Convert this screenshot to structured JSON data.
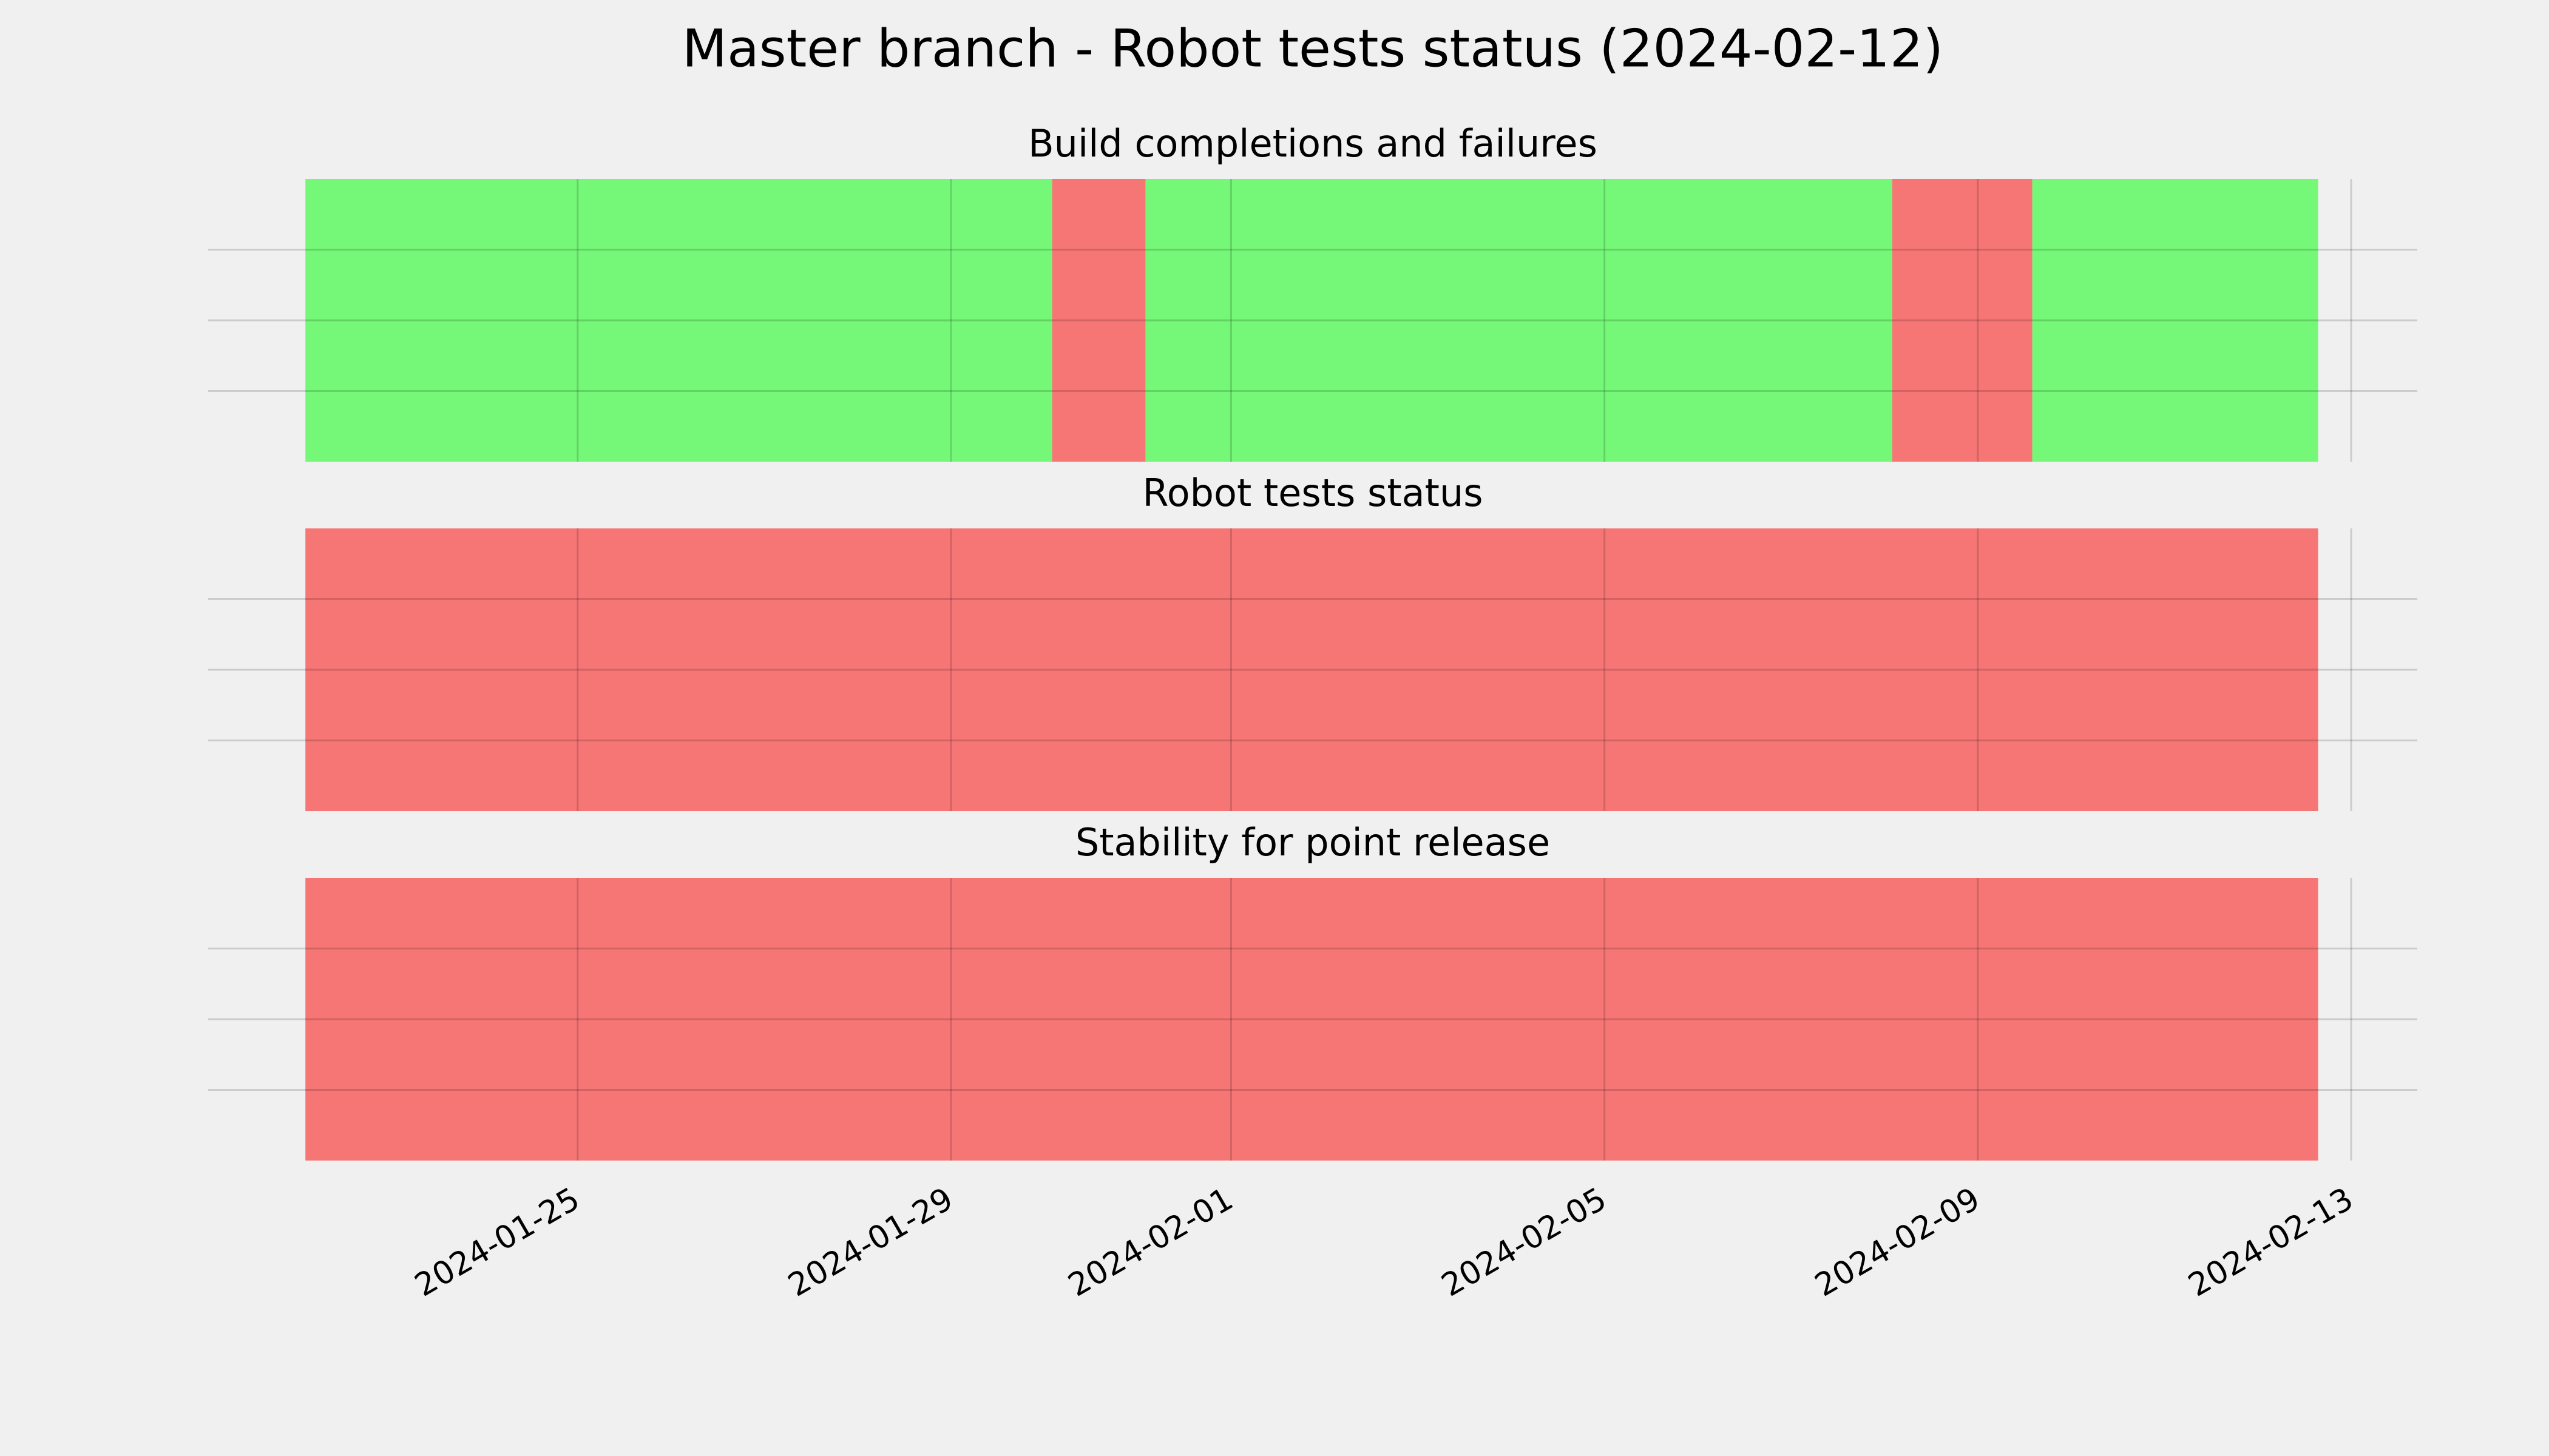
{
  "title": "Master branch - Robot tests status (2024-02-12)",
  "chart_data": [
    {
      "type": "timeline",
      "title": "Build completions and failures",
      "spans": [
        {
          "start": "2024-01-22T02:00",
          "end": "2024-01-30T02:00",
          "color": "#75f777"
        },
        {
          "start": "2024-01-30T02:00",
          "end": "2024-01-31T02:00",
          "color": "#f67575"
        },
        {
          "start": "2024-01-31T02:00",
          "end": "2024-02-08T02:00",
          "color": "#75f777"
        },
        {
          "start": "2024-02-08T02:00",
          "end": "2024-02-09T14:00",
          "color": "#f67575"
        },
        {
          "start": "2024-02-09T14:00",
          "end": "2024-02-12T15:30",
          "color": "#75f777"
        }
      ],
      "xlim": [
        "2024-01-21T01:00",
        "2024-02-13T17:00"
      ],
      "xticks": [
        {
          "value": "2024-01-25T00:00",
          "label": "2024-01-25"
        },
        {
          "value": "2024-01-29T00:00",
          "label": "2024-01-29"
        },
        {
          "value": "2024-02-01T00:00",
          "label": "2024-02-01"
        },
        {
          "value": "2024-02-05T00:00",
          "label": "2024-02-05"
        },
        {
          "value": "2024-02-09T00:00",
          "label": "2024-02-09"
        },
        {
          "value": "2024-02-13T00:00",
          "label": "2024-02-13"
        }
      ],
      "ylim": [
        0,
        1
      ],
      "yticks": [
        0.25,
        0.5,
        0.75
      ],
      "grid": true
    },
    {
      "type": "timeline",
      "title": "Robot tests status",
      "spans": [
        {
          "start": "2024-01-22T02:00",
          "end": "2024-02-12T15:30",
          "color": "#f67575"
        }
      ],
      "xlim": [
        "2024-01-21T01:00",
        "2024-02-13T17:00"
      ],
      "xticks": [
        {
          "value": "2024-01-25T00:00",
          "label": "2024-01-25"
        },
        {
          "value": "2024-01-29T00:00",
          "label": "2024-01-29"
        },
        {
          "value": "2024-02-01T00:00",
          "label": "2024-02-01"
        },
        {
          "value": "2024-02-05T00:00",
          "label": "2024-02-05"
        },
        {
          "value": "2024-02-09T00:00",
          "label": "2024-02-09"
        },
        {
          "value": "2024-02-13T00:00",
          "label": "2024-02-13"
        }
      ],
      "ylim": [
        0,
        1
      ],
      "yticks": [
        0.25,
        0.5,
        0.75
      ],
      "grid": true
    },
    {
      "type": "timeline",
      "title": "Stability for point release",
      "spans": [
        {
          "start": "2024-01-22T02:00",
          "end": "2024-02-12T15:30",
          "color": "#f67575"
        }
      ],
      "xlim": [
        "2024-01-21T01:00",
        "2024-02-13T17:00"
      ],
      "xticks": [
        {
          "value": "2024-01-25T00:00",
          "label": "2024-01-25"
        },
        {
          "value": "2024-01-29T00:00",
          "label": "2024-01-29"
        },
        {
          "value": "2024-02-01T00:00",
          "label": "2024-02-01"
        },
        {
          "value": "2024-02-05T00:00",
          "label": "2024-02-05"
        },
        {
          "value": "2024-02-09T00:00",
          "label": "2024-02-09"
        },
        {
          "value": "2024-02-13T00:00",
          "label": "2024-02-13"
        }
      ],
      "ylim": [
        0,
        1
      ],
      "yticks": [
        0.25,
        0.5,
        0.75
      ],
      "grid": true
    }
  ]
}
